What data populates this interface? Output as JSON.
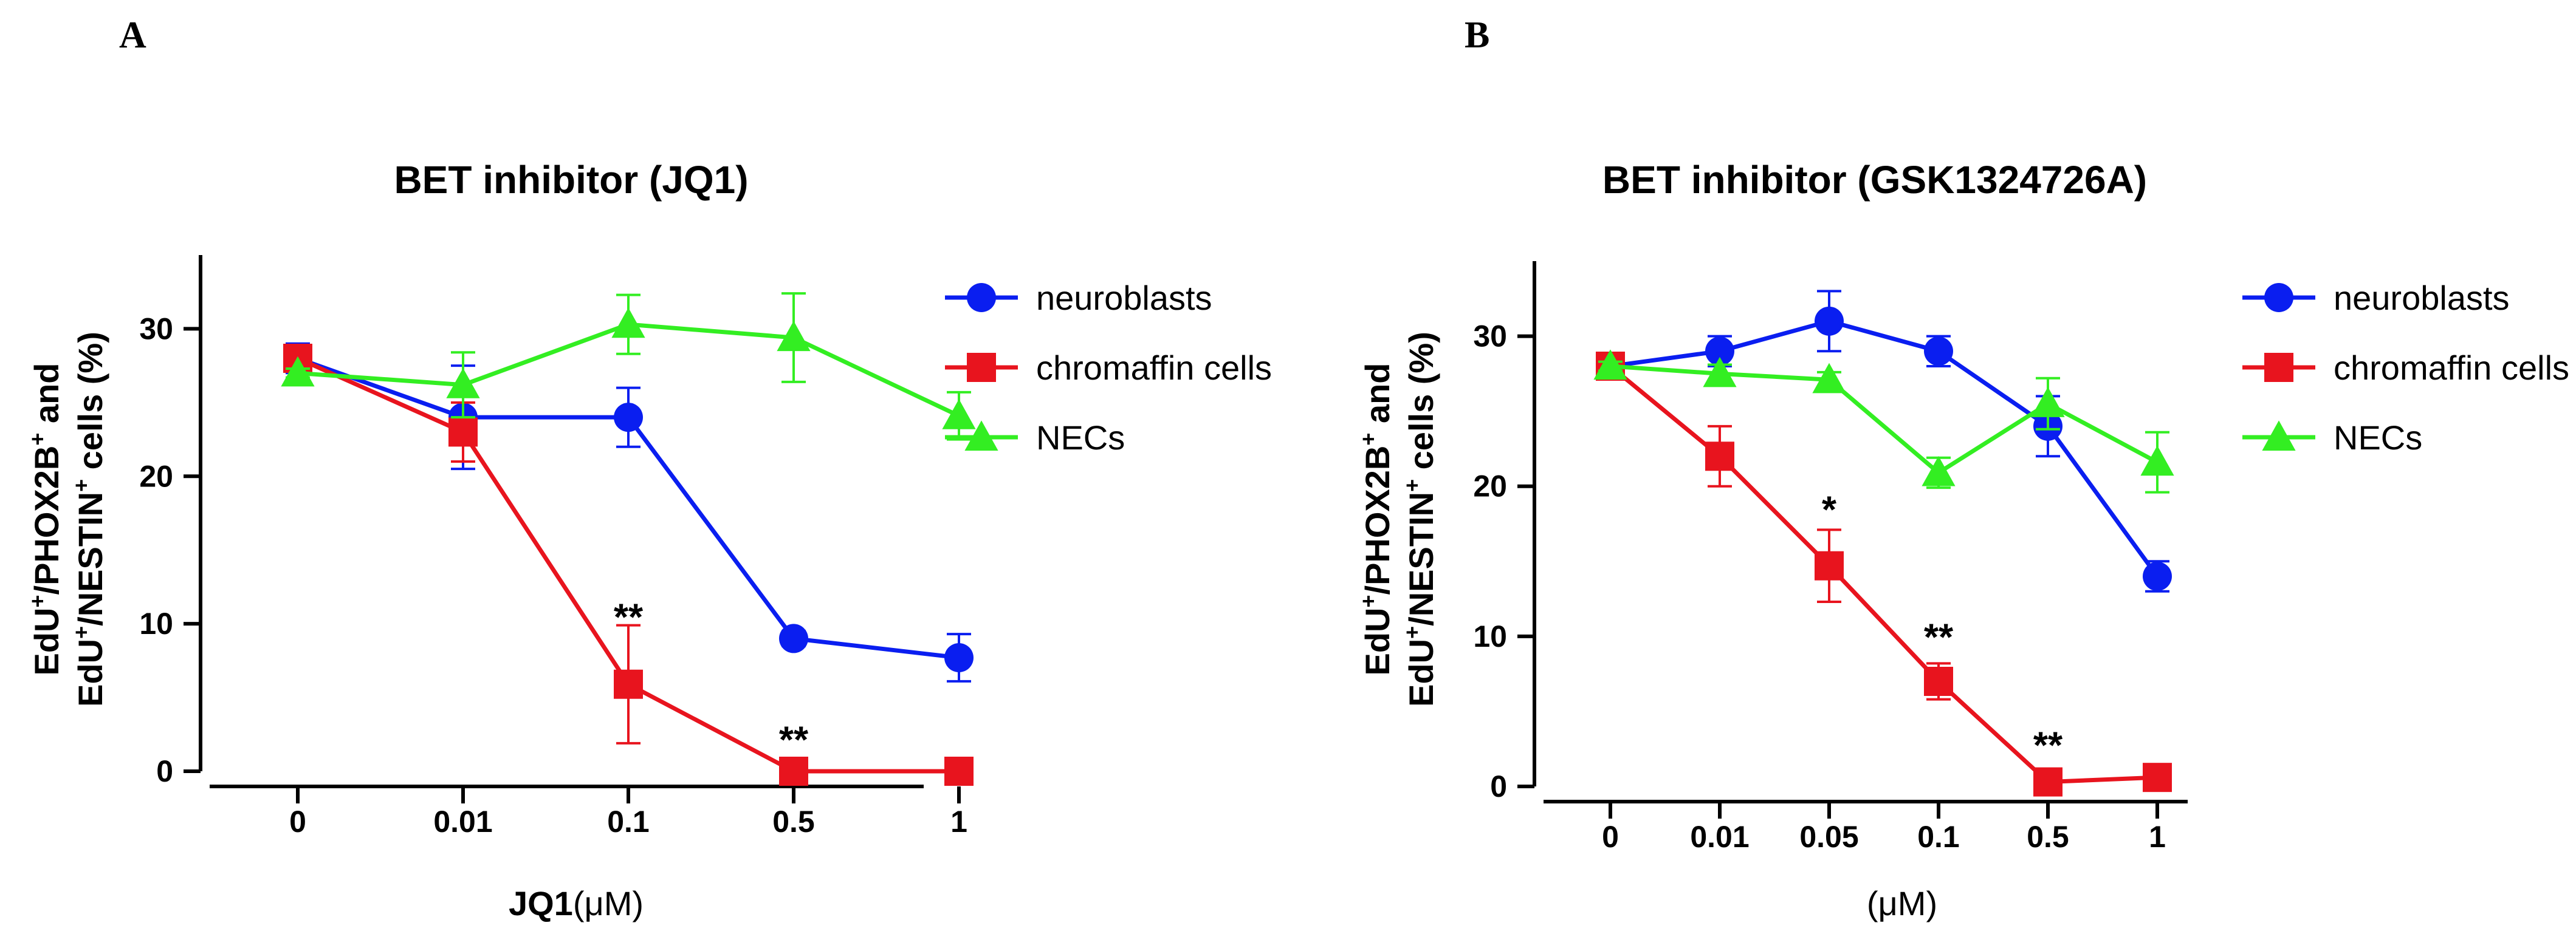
{
  "panels": {
    "a": {
      "letter": "A"
    },
    "b": {
      "letter": "B"
    }
  },
  "chart_data": [
    {
      "type": "line",
      "title": "BET inhibitor (JQ1)",
      "ylabel": {
        "line1": {
          "p1": "EdU",
          "s1": "+",
          "p2": "/PHOX2B",
          "s2": "+",
          "p3": " and"
        },
        "line2": {
          "p1": "EdU",
          "s1": "+",
          "p2": "/NESTIN",
          "s2": "+",
          "p3": " cells (%)"
        }
      },
      "xlabel": {
        "main": "JQ1",
        "unit": "(μM)"
      },
      "categories": [
        "0",
        "0.01",
        "0.1",
        "0.5",
        "1"
      ],
      "ylim": [
        0,
        35
      ],
      "yticks": [
        0,
        10,
        20,
        30
      ],
      "yticklabels": [
        "0",
        "10",
        "20",
        "30"
      ],
      "legend_position": "right",
      "series": [
        {
          "name": "neuroblasts",
          "color": "#0a1ef0",
          "marker": "circle",
          "values": [
            28,
            24,
            24,
            9,
            7.7
          ],
          "errors": [
            1.0,
            3.5,
            2.0,
            0.5,
            1.6
          ]
        },
        {
          "name": "chromaffin cells",
          "color": "#e8141e",
          "marker": "square",
          "values": [
            28,
            23,
            5.9,
            0,
            0
          ],
          "errors": [
            0.5,
            2.0,
            4.0,
            0,
            0
          ]
        },
        {
          "name": "NECs",
          "color": "#33ee22",
          "marker": "triangle",
          "values": [
            27,
            26.2,
            30.3,
            29.4,
            24.1
          ],
          "errors": [
            0.3,
            2.2,
            2.0,
            3.0,
            1.6
          ]
        }
      ],
      "annotations": [
        {
          "text": "**",
          "x": 2,
          "y": 10.8
        },
        {
          "text": "**",
          "x": 3,
          "y": 2.5
        }
      ]
    },
    {
      "type": "line",
      "title": "BET inhibitor (GSK1324726A)",
      "ylabel": {
        "line1": {
          "p1": "EdU",
          "s1": "+",
          "p2": "/PHOX2B",
          "s2": "+",
          "p3": " and"
        },
        "line2": {
          "p1": "EdU",
          "s1": "+",
          "p2": "/NESTIN",
          "s2": "+",
          "p3": " cells (%)"
        }
      },
      "xlabel": {
        "main": "",
        "unit": "(μM)"
      },
      "categories": [
        "0",
        "0.01",
        "0.05",
        "0.1",
        "0.5",
        "1"
      ],
      "ylim": [
        0,
        35
      ],
      "yticks": [
        0,
        10,
        20,
        30
      ],
      "yticklabels": [
        "0",
        "10",
        "20",
        "30"
      ],
      "legend_position": "right",
      "series": [
        {
          "name": "neuroblasts",
          "color": "#0a1ef0",
          "marker": "circle",
          "values": [
            28,
            29,
            31,
            29,
            24,
            14
          ],
          "errors": [
            0.3,
            1.0,
            2.0,
            1.0,
            2.0,
            1.0
          ]
        },
        {
          "name": "chromaffin cells",
          "color": "#e8141e",
          "marker": "square",
          "values": [
            28,
            22,
            14.7,
            7,
            0.3,
            0.6
          ],
          "errors": [
            0.3,
            2.0,
            2.4,
            1.2,
            0.2,
            0.3
          ]
        },
        {
          "name": "NECs",
          "color": "#33ee22",
          "marker": "triangle",
          "values": [
            28,
            27.5,
            27.1,
            20.9,
            25.5,
            21.6
          ],
          "errors": [
            0.3,
            0.6,
            0.5,
            1.0,
            1.7,
            2.0
          ]
        }
      ],
      "annotations": [
        {
          "text": "*",
          "x": 2,
          "y": 18.8
        },
        {
          "text": "**",
          "x": 3,
          "y": 10.3
        },
        {
          "text": "**",
          "x": 4,
          "y": 3.1
        }
      ]
    }
  ]
}
